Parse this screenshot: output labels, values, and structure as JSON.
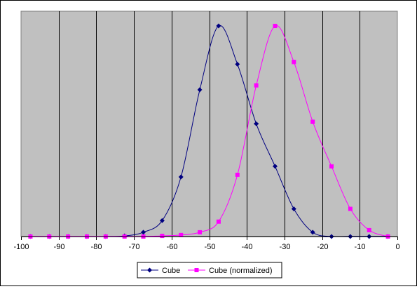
{
  "chart_data": {
    "type": "line",
    "title": "",
    "xlabel": "",
    "ylabel": "",
    "xlim": [
      -100,
      0
    ],
    "ylim": [
      0,
      1
    ],
    "x_ticks": [
      "-100",
      "-90",
      "-80",
      "-70",
      "-60",
      "-50",
      "-40",
      "-30",
      "-20",
      "-10",
      "0"
    ],
    "grid": "vertical",
    "legend_position": "bottom",
    "plot_background": "#c0c0c0",
    "series": [
      {
        "name": "Cube",
        "color": "#000080",
        "marker": "diamond",
        "x": [
          -97.5,
          -92.5,
          -87.5,
          -82.5,
          -77.5,
          -72.5,
          -67.5,
          -62.5,
          -57.5,
          -52.5,
          -47.5,
          -42.5,
          -37.5,
          -32.5,
          -27.5,
          -22.5,
          -17.5,
          -12.5,
          -7.5,
          -2.5
        ],
        "y": [
          0.0,
          0.0,
          0.0,
          0.0,
          0.0,
          0.003,
          0.02,
          0.075,
          0.28,
          0.69,
          0.99,
          0.81,
          0.53,
          0.33,
          0.13,
          0.02,
          0.0,
          0.0,
          0.0,
          0.0
        ]
      },
      {
        "name": "Cube (normalized)",
        "color": "#ff00ff",
        "marker": "square",
        "x": [
          -97.5,
          -92.5,
          -87.5,
          -82.5,
          -77.5,
          -72.5,
          -67.5,
          -62.5,
          -57.5,
          -52.5,
          -47.5,
          -42.5,
          -37.5,
          -32.5,
          -27.5,
          -22.5,
          -17.5,
          -12.5,
          -7.5,
          -2.5
        ],
        "y": [
          0.0,
          0.0,
          0.0,
          0.0,
          0.0,
          0.0,
          0.0,
          0.003,
          0.007,
          0.02,
          0.07,
          0.29,
          0.71,
          0.99,
          0.82,
          0.54,
          0.33,
          0.13,
          0.03,
          0.0
        ]
      }
    ]
  }
}
